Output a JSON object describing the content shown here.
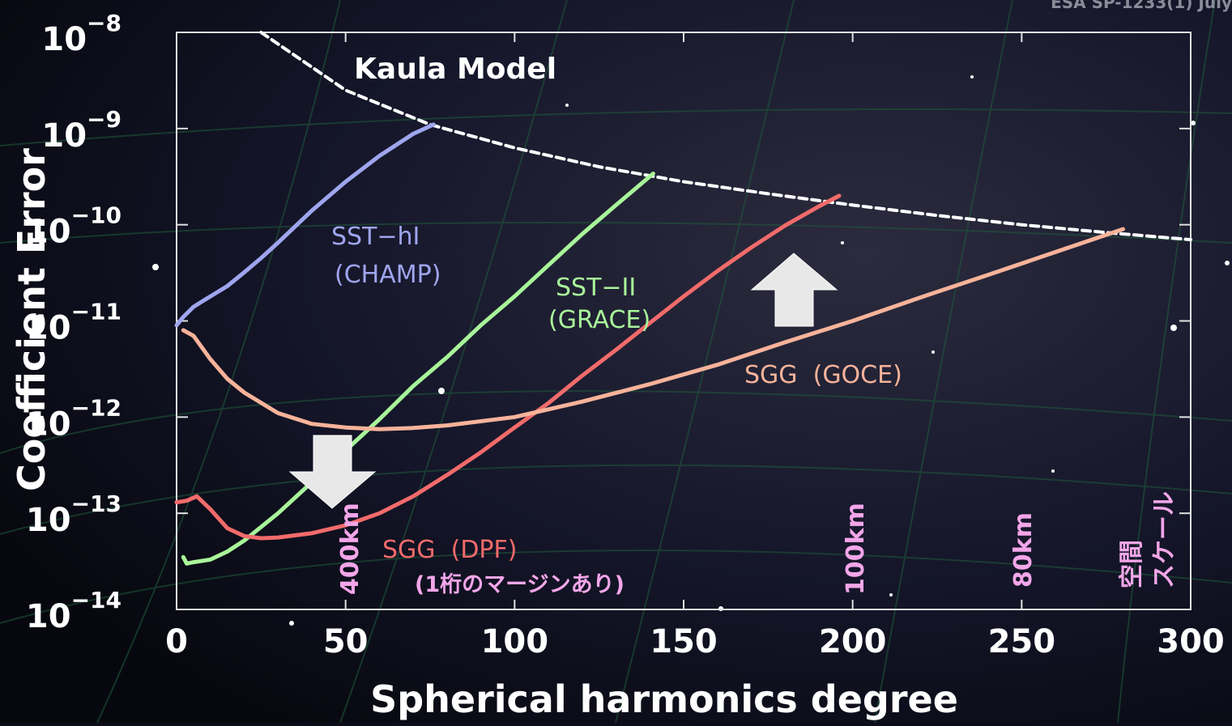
{
  "source_note": "ESA SP-1233(1) July",
  "colors": {
    "background": "#0c0d1a",
    "axis": "#ffffff",
    "kaula": "#ffffff",
    "champ": "#9fa5ee",
    "grace": "#a9f59a",
    "dpf": "#f26b6b",
    "goce": "#f7b39a",
    "scale_labels": "#f3a6e9",
    "arrow": "#e8e8e8"
  },
  "chart_data": {
    "type": "line",
    "xlabel": "Spherical harmonics degree",
    "ylabel": "Coefficient Error",
    "xlim": [
      0,
      300
    ],
    "ylim": [
      1e-14,
      1e-08
    ],
    "yscale": "log",
    "xticks": [
      "0",
      "50",
      "100",
      "150",
      "200",
      "250",
      "300"
    ],
    "yticks": [
      {
        "base": "10",
        "exp": "−8"
      },
      {
        "base": "10",
        "exp": "−9"
      },
      {
        "base": "10",
        "exp": "−10"
      },
      {
        "base": "10",
        "exp": "−11"
      },
      {
        "base": "10",
        "exp": "−12"
      },
      {
        "base": "10",
        "exp": "−13"
      },
      {
        "base": "10",
        "exp": "−14"
      }
    ],
    "series": [
      {
        "name": "Kaula Model",
        "style": "dashed",
        "color": "#ffffff",
        "x": [
          25,
          50,
          75,
          100,
          125,
          150,
          175,
          200,
          225,
          250,
          275,
          300
        ],
        "y": [
          1e-08,
          2.5e-09,
          1.1e-09,
          6.3e-10,
          4e-10,
          2.8e-10,
          2.1e-10,
          1.6e-10,
          1.25e-10,
          1e-10,
          8.3e-11,
          7e-11
        ]
      },
      {
        "name": "SST−hl",
        "subname": "(CHAMP)",
        "color": "#9fa5ee",
        "x": [
          0,
          2,
          5,
          10,
          15,
          20,
          25,
          30,
          40,
          50,
          60,
          70,
          76
        ],
        "y": [
          9e-12,
          1.1e-11,
          1.4e-11,
          1.8e-11,
          2.3e-11,
          3.2e-11,
          4.5e-11,
          6.5e-11,
          1.4e-10,
          2.8e-10,
          5.2e-10,
          8.8e-10,
          1.1e-09
        ]
      },
      {
        "name": "SST−II",
        "subname": "(GRACE)",
        "color": "#a9f59a",
        "x": [
          2,
          3,
          5,
          10,
          15,
          20,
          30,
          40,
          50,
          60,
          70,
          80,
          90,
          100,
          110,
          120,
          130,
          141
        ],
        "y": [
          3.5e-14,
          3e-14,
          3.1e-14,
          3.3e-14,
          4e-14,
          5.2e-14,
          1e-13,
          2.1e-13,
          4.5e-13,
          9.5e-13,
          2.1e-12,
          4.2e-12,
          9e-12,
          1.8e-11,
          3.8e-11,
          8e-11,
          1.6e-10,
          3.4e-10
        ]
      },
      {
        "name": "SGG (DPF)",
        "subname": "(1桁のマージンあり)",
        "color": "#f26b6b",
        "x": [
          0,
          3,
          6,
          10,
          15,
          20,
          25,
          30,
          40,
          50,
          60,
          70,
          80,
          90,
          100,
          110,
          120,
          130,
          140,
          150,
          160,
          170,
          180,
          190,
          196
        ],
        "y": [
          1.3e-13,
          1.35e-13,
          1.5e-13,
          1.1e-13,
          7e-14,
          5.8e-14,
          5.5e-14,
          5.6e-14,
          6.2e-14,
          7.5e-14,
          1e-13,
          1.5e-13,
          2.5e-13,
          4.3e-13,
          7.8e-13,
          1.4e-12,
          2.7e-12,
          5e-12,
          9.5e-12,
          1.8e-11,
          3.3e-11,
          5.8e-11,
          9.8e-11,
          1.55e-10,
          2e-10
        ]
      },
      {
        "name": "SGG (GOCE)",
        "subname": "",
        "color": "#f7b39a",
        "x": [
          2,
          5,
          10,
          15,
          20,
          30,
          40,
          50,
          60,
          70,
          80,
          100,
          120,
          140,
          160,
          180,
          200,
          220,
          240,
          260,
          280
        ],
        "y": [
          8e-12,
          7e-12,
          4e-12,
          2.5e-12,
          1.8e-12,
          1.1e-12,
          8.5e-13,
          7.8e-13,
          7.5e-13,
          7.7e-13,
          8.2e-13,
          1e-12,
          1.45e-12,
          2.2e-12,
          3.5e-12,
          6e-12,
          1e-11,
          1.75e-11,
          3e-11,
          5.2e-11,
          9e-11
        ]
      }
    ],
    "annotations": {
      "kaula": "Kaula Model",
      "champ_1": "SST−hI",
      "champ_2": "(CHAMP)",
      "grace_1": "SST−II",
      "grace_2": "(GRACE)",
      "goce": "SGG  (GOCE)",
      "dpf_1": "SGG  (DPF)",
      "dpf_2": "(1桁のマージンあり)"
    },
    "scale_labels": {
      "km400": "400km",
      "km100": "100km",
      "km80": "80km",
      "jp_1": "空間",
      "jp_2": "スケール"
    },
    "grid": false
  }
}
